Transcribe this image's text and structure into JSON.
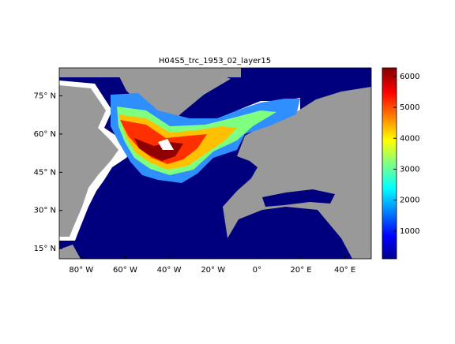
{
  "chart_data": {
    "type": "map",
    "title": "H04S5_trc_1953_02_layer15",
    "xlim": [
      -90,
      52
    ],
    "xticks": [
      {
        "value": -80,
        "label": "80° W"
      },
      {
        "value": -60,
        "label": "60° W"
      },
      {
        "value": -40,
        "label": "40° W"
      },
      {
        "value": -20,
        "label": "20° W"
      },
      {
        "value": 0,
        "label": "0°"
      },
      {
        "value": 20,
        "label": "20° E"
      },
      {
        "value": 40,
        "label": "40° E"
      }
    ],
    "ylim": [
      11,
      86
    ],
    "yticks": [
      {
        "value": 15,
        "label": "15° N"
      },
      {
        "value": 30,
        "label": "30° N"
      },
      {
        "value": 45,
        "label": "45° N"
      },
      {
        "value": 60,
        "label": "60° N"
      },
      {
        "value": 75,
        "label": "75° N"
      }
    ],
    "colorbar": {
      "colormap": "jet",
      "clim": [
        100,
        6280
      ],
      "ticks": [
        1000,
        2000,
        3000,
        4000,
        5000,
        6000
      ]
    }
  }
}
